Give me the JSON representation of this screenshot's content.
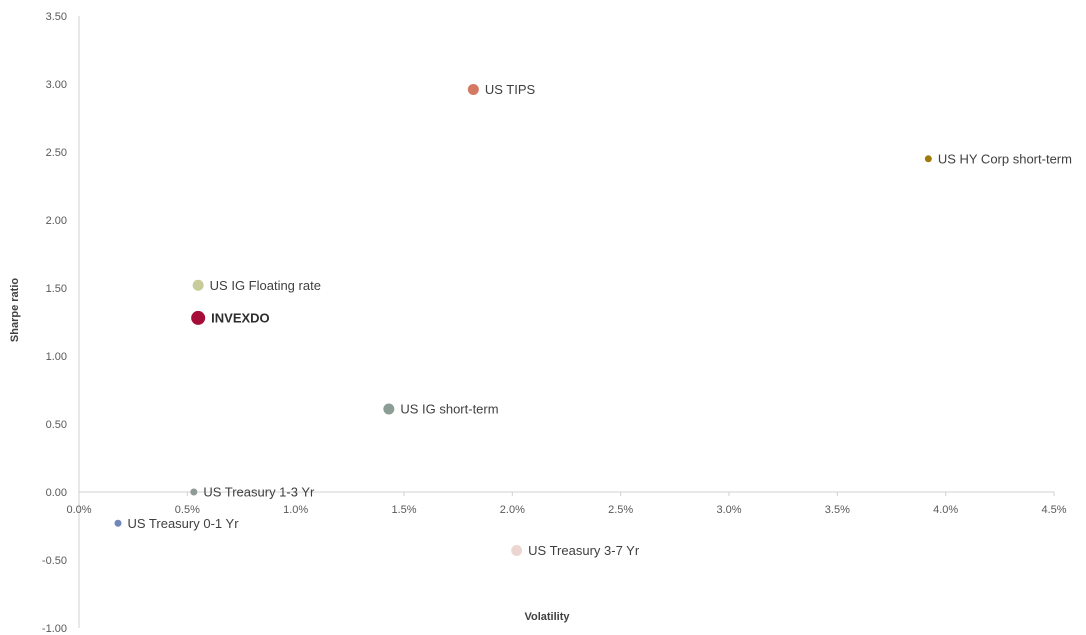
{
  "chart_data": {
    "type": "scatter",
    "xlabel": "Volatility",
    "ylabel": "Sharpe ratio",
    "xlim": [
      0,
      4.5
    ],
    "ylim": [
      -1.0,
      3.5
    ],
    "x_ticks": [
      "0.0%",
      "0.5%",
      "1.0%",
      "1.5%",
      "2.0%",
      "2.5%",
      "3.0%",
      "3.5%",
      "4.0%",
      "4.5%"
    ],
    "y_ticks": [
      "3.50",
      "3.00",
      "2.50",
      "2.00",
      "1.50",
      "1.00",
      "0.50",
      "0.00",
      "-0.50",
      "-1.00"
    ],
    "grid": false,
    "points": [
      {
        "label": "US TIPS",
        "x": 1.82,
        "y": 2.96,
        "color": "#d47a63",
        "size": "medium",
        "bold": false
      },
      {
        "label": "US HY Corp short-term",
        "x": 3.92,
        "y": 2.45,
        "color": "#a07a0a",
        "size": "small",
        "bold": false
      },
      {
        "label": "US IG Floating rate",
        "x": 0.55,
        "y": 1.52,
        "color": "#c8cc9a",
        "size": "medium",
        "bold": false
      },
      {
        "label": "INVEXDO",
        "x": 0.55,
        "y": 1.28,
        "color": "#a50d38",
        "size": "large",
        "bold": true
      },
      {
        "label": "US IG short-term",
        "x": 1.43,
        "y": 0.61,
        "color": "#8a9e95",
        "size": "medium",
        "bold": false
      },
      {
        "label": "US Treasury 1-3 Yr",
        "x": 0.53,
        "y": 0.0,
        "color": "#8f9a96",
        "size": "small",
        "bold": false
      },
      {
        "label": "US Treasury 0-1 Yr",
        "x": 0.18,
        "y": -0.23,
        "color": "#6f87bb",
        "size": "small",
        "bold": false
      },
      {
        "label": "US Treasury 3-7 Yr",
        "x": 2.02,
        "y": -0.43,
        "color": "#ecd6d2",
        "size": "medium",
        "bold": false
      }
    ]
  }
}
